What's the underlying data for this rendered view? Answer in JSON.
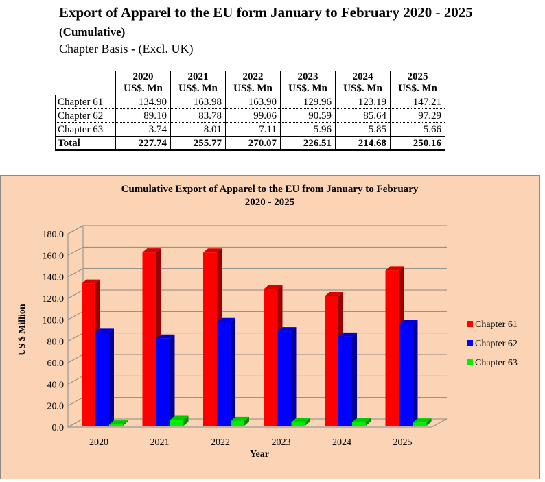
{
  "header": {
    "title": "Export of Apparel to the EU form January to February 2020 - 2025",
    "subtitle": "(Cumulative)",
    "basis": "Chapter Basis - (Excl. UK)"
  },
  "table": {
    "years": [
      "2020",
      "2021",
      "2022",
      "2023",
      "2024",
      "2025"
    ],
    "unit": "US$. Mn",
    "rows": [
      {
        "label": "Chapter 61",
        "values": [
          "134.90",
          "163.98",
          "163.90",
          "129.96",
          "123.19",
          "147.21"
        ]
      },
      {
        "label": "Chapter 62",
        "values": [
          "89.10",
          "83.78",
          "99.06",
          "90.59",
          "85.64",
          "97.29"
        ]
      },
      {
        "label": "Chapter 63",
        "values": [
          "3.74",
          "8.01",
          "7.11",
          "5.96",
          "5.85",
          "5.66"
        ]
      }
    ],
    "total": {
      "label": "Total",
      "values": [
        "227.74",
        "255.77",
        "270.07",
        "226.51",
        "214.68",
        "250.16"
      ]
    }
  },
  "chart_data": {
    "type": "bar",
    "title": "Cumulative Export of Apparel to the EU from January to February",
    "title_line2": "2020 - 2025",
    "xlabel": "Year",
    "ylabel": "US $ Million",
    "ylim": [
      0,
      180
    ],
    "yticks": [
      "0.0",
      "20.0",
      "40.0",
      "60.0",
      "80.0",
      "100.0",
      "120.0",
      "140.0",
      "160.0",
      "180.0"
    ],
    "categories": [
      "2020",
      "2021",
      "2022",
      "2023",
      "2024",
      "2025"
    ],
    "series": [
      {
        "name": "Chapter 61",
        "color": "#FF0000",
        "values": [
          134.9,
          163.98,
          163.9,
          129.96,
          123.19,
          147.21
        ]
      },
      {
        "name": "Chapter 62",
        "color": "#0000FF",
        "values": [
          89.1,
          83.78,
          99.06,
          90.59,
          85.64,
          97.29
        ]
      },
      {
        "name": "Chapter 63",
        "color": "#00EE00",
        "values": [
          3.74,
          8.01,
          7.11,
          5.96,
          5.85,
          5.66
        ]
      }
    ],
    "legend": "right",
    "grid": true
  }
}
